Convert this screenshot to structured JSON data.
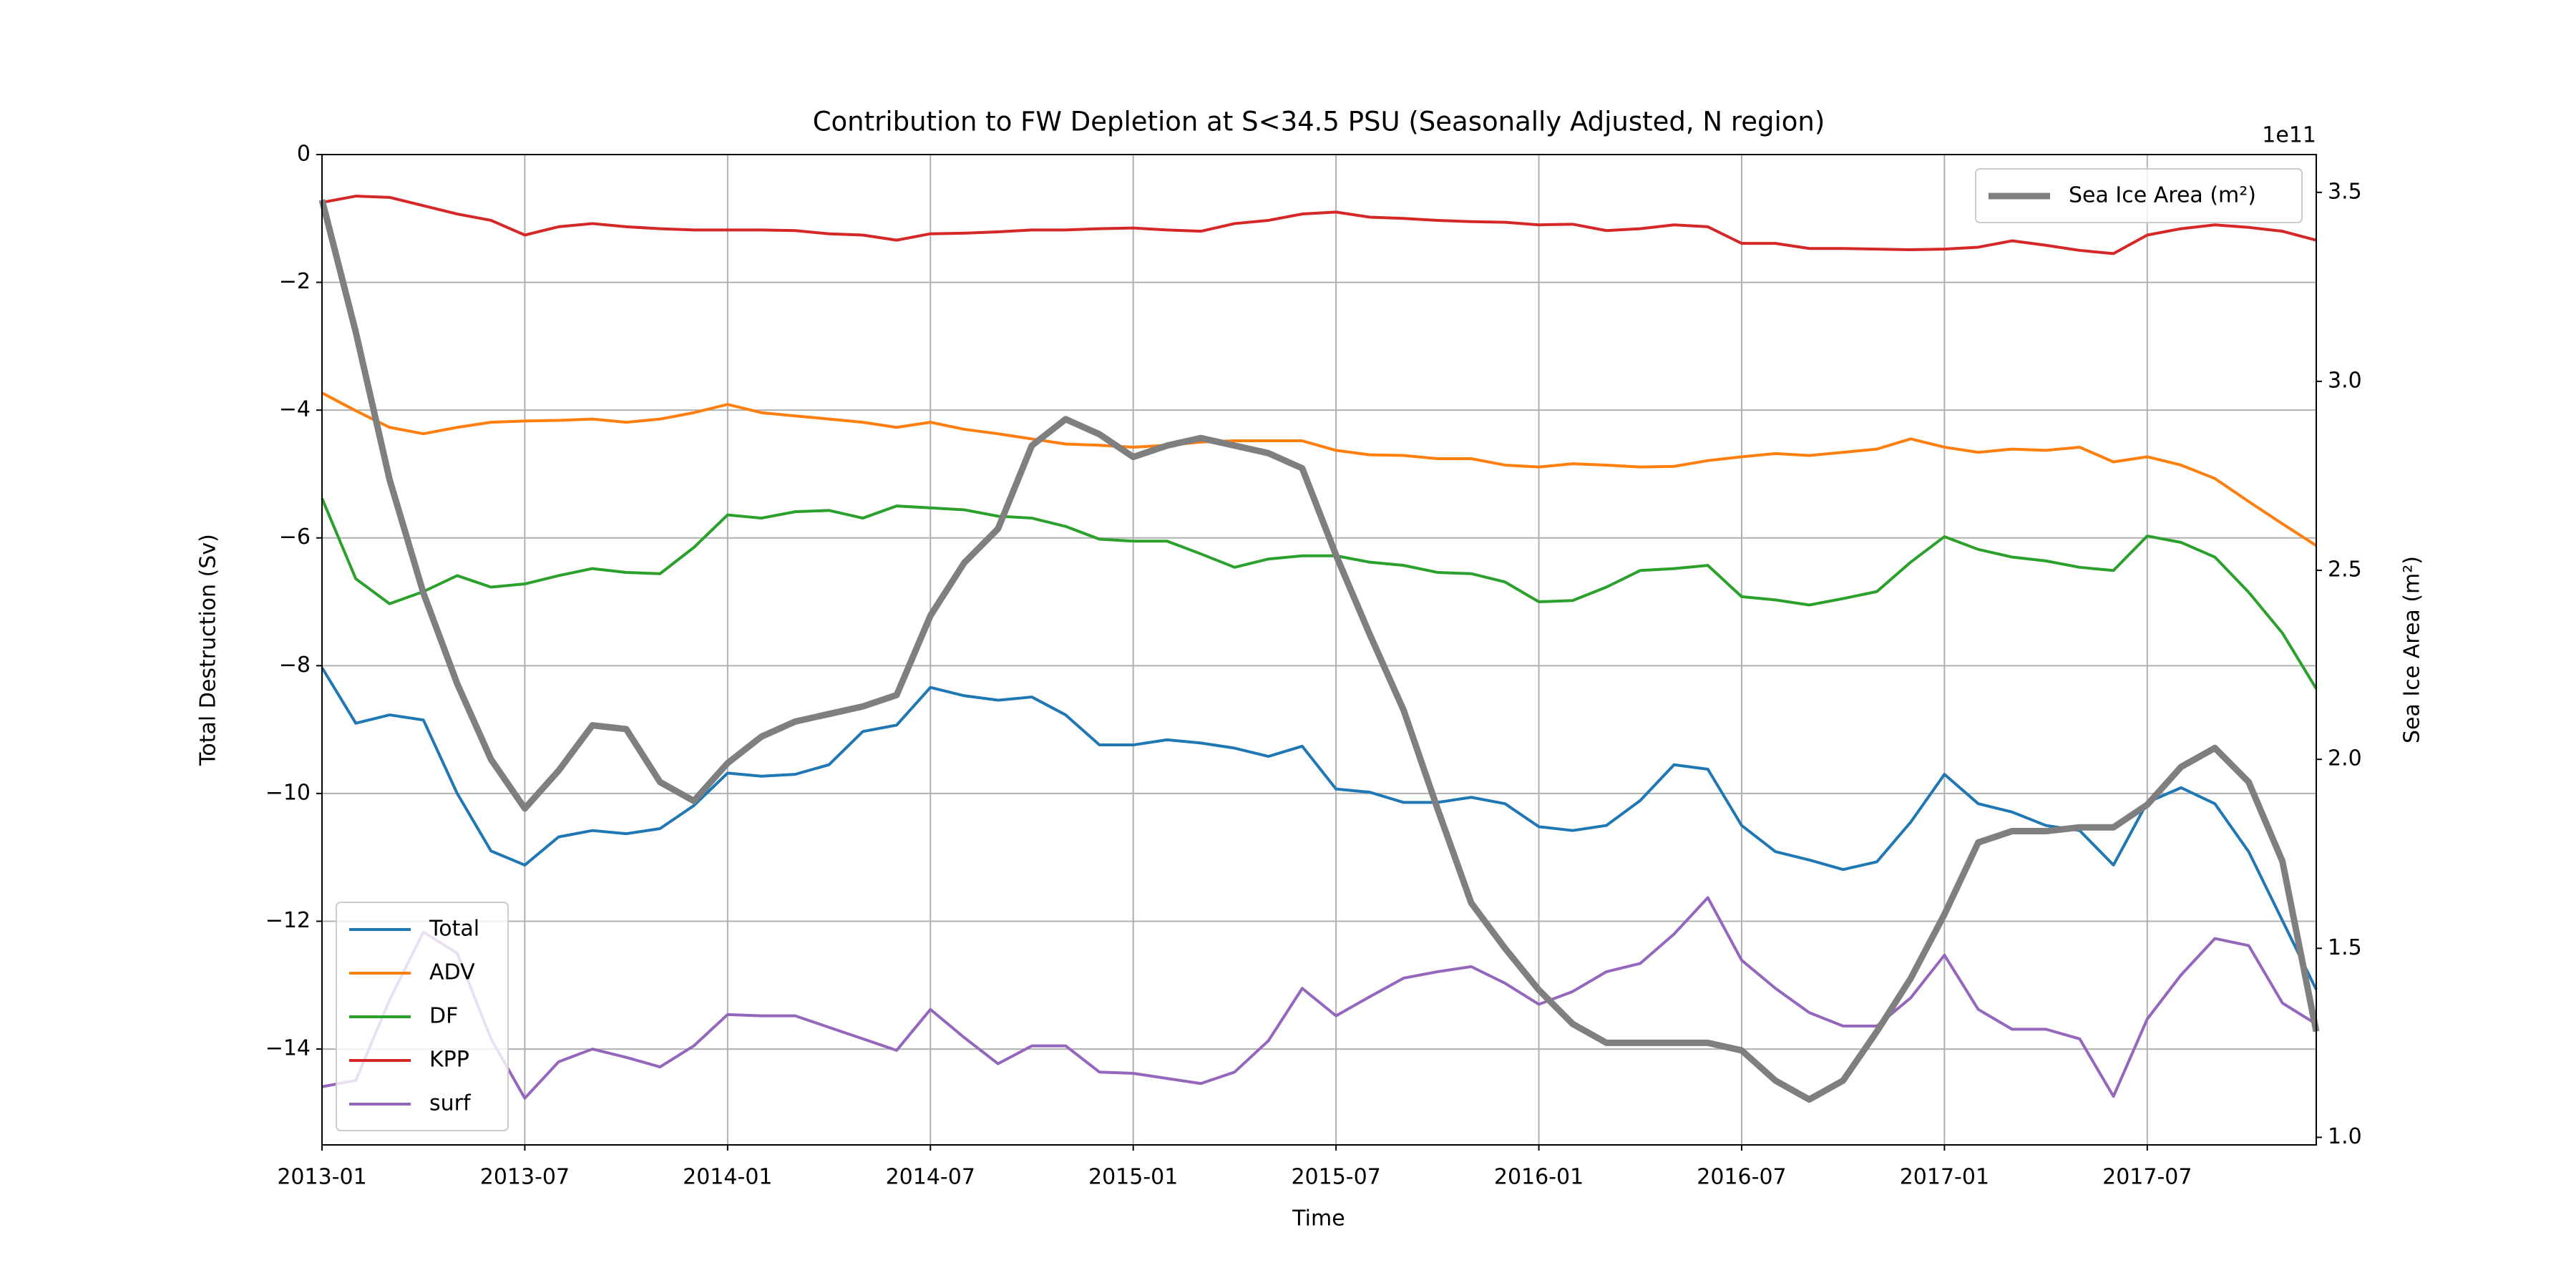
{
  "chart_data": {
    "type": "line",
    "title": "Contribution to FW Depletion at S<34.5 PSU (Seasonally Adjusted, N region)",
    "xlabel": "Time",
    "ylabel": "Total Destruction (Sv)",
    "y2label": "Sea Ice Area (m²)",
    "y2_offset_label": "1e11",
    "x": [
      "2013-01",
      "2013-02",
      "2013-03",
      "2013-04",
      "2013-05",
      "2013-06",
      "2013-07",
      "2013-08",
      "2013-09",
      "2013-10",
      "2013-11",
      "2013-12",
      "2014-01",
      "2014-02",
      "2014-03",
      "2014-04",
      "2014-05",
      "2014-06",
      "2014-07",
      "2014-08",
      "2014-09",
      "2014-10",
      "2014-11",
      "2014-12",
      "2015-01",
      "2015-02",
      "2015-03",
      "2015-04",
      "2015-05",
      "2015-06",
      "2015-07",
      "2015-08",
      "2015-09",
      "2015-10",
      "2015-11",
      "2015-12",
      "2016-01",
      "2016-02",
      "2016-03",
      "2016-04",
      "2016-05",
      "2016-06",
      "2016-07",
      "2016-08",
      "2016-09",
      "2016-10",
      "2016-11",
      "2016-12",
      "2017-01",
      "2017-02",
      "2017-03",
      "2017-04",
      "2017-05",
      "2017-06",
      "2017-07",
      "2017-08",
      "2017-09",
      "2017-10",
      "2017-11",
      "2017-12"
    ],
    "xlim": [
      "2013-01",
      "2017-12"
    ],
    "xticks": [
      "2013-01",
      "2013-07",
      "2014-01",
      "2014-07",
      "2015-01",
      "2015-07",
      "2016-01",
      "2016-07",
      "2017-01",
      "2017-07"
    ],
    "ylim": [
      -15.5,
      0
    ],
    "yticks": [
      0,
      {
        "value": -2,
        "label": "−2"
      },
      {
        "value": -4,
        "label": "−4"
      },
      {
        "value": -6,
        "label": "−6"
      },
      {
        "value": -8,
        "label": "−8"
      },
      {
        "value": -10,
        "label": "−10"
      },
      {
        "value": -12,
        "label": "−12"
      },
      {
        "value": -14,
        "label": "−14"
      }
    ],
    "y2lim": [
      0.98,
      3.6
    ],
    "y2ticks": [
      {
        "value": 1.0,
        "label": "1.0"
      },
      {
        "value": 1.5,
        "label": "1.5"
      },
      {
        "value": 2.0,
        "label": "2.0"
      },
      {
        "value": 2.5,
        "label": "2.5"
      },
      {
        "value": 3.0,
        "label": "3.0"
      },
      {
        "value": 3.5,
        "label": "3.5"
      }
    ],
    "grid": true,
    "legend": "lower left",
    "y2_legend": "upper right",
    "series": [
      {
        "name": "Total",
        "color": "#1f77b4",
        "values": [
          -8.03,
          -8.9,
          -8.77,
          -8.85,
          -10.0,
          -10.9,
          -11.12,
          -10.68,
          -10.58,
          -10.63,
          -10.55,
          -10.19,
          -9.68,
          -9.73,
          -9.7,
          -9.55,
          -9.03,
          -8.93,
          -8.34,
          -8.47,
          -8.54,
          -8.49,
          -8.77,
          -9.24,
          -9.24,
          -9.16,
          -9.21,
          -9.29,
          -9.42,
          -9.26,
          -9.93,
          -9.98,
          -10.14,
          -10.14,
          -10.06,
          -10.16,
          -10.52,
          -10.58,
          -10.5,
          -10.11,
          -9.55,
          -9.62,
          -10.5,
          -10.91,
          -11.04,
          -11.19,
          -11.07,
          -10.45,
          -9.7,
          -10.16,
          -10.29,
          -10.5,
          -10.58,
          -11.12,
          -10.14,
          -9.91,
          -10.16,
          -10.91,
          -11.99,
          -13.07
        ]
      },
      {
        "name": "ADV",
        "color": "#ff7f0e",
        "values": [
          -3.73,
          -4.01,
          -4.27,
          -4.37,
          -4.27,
          -4.19,
          -4.17,
          -4.16,
          -4.14,
          -4.19,
          -4.14,
          -4.04,
          -3.91,
          -4.04,
          -4.09,
          -4.14,
          -4.19,
          -4.27,
          -4.19,
          -4.3,
          -4.37,
          -4.45,
          -4.53,
          -4.55,
          -4.58,
          -4.55,
          -4.5,
          -4.48,
          -4.48,
          -4.48,
          -4.63,
          -4.7,
          -4.71,
          -4.76,
          -4.76,
          -4.86,
          -4.89,
          -4.84,
          -4.86,
          -4.89,
          -4.88,
          -4.79,
          -4.73,
          -4.68,
          -4.71,
          -4.66,
          -4.61,
          -4.45,
          -4.58,
          -4.66,
          -4.61,
          -4.63,
          -4.58,
          -4.81,
          -4.73,
          -4.86,
          -5.07,
          -5.43,
          -5.78,
          -6.12
        ]
      },
      {
        "name": "DF",
        "color": "#2ca02c",
        "values": [
          -5.38,
          -6.64,
          -7.03,
          -6.84,
          -6.59,
          -6.77,
          -6.72,
          -6.59,
          -6.48,
          -6.54,
          -6.56,
          -6.15,
          -5.64,
          -5.69,
          -5.59,
          -5.57,
          -5.69,
          -5.5,
          -5.53,
          -5.56,
          -5.66,
          -5.69,
          -5.82,
          -6.02,
          -6.05,
          -6.05,
          -6.25,
          -6.46,
          -6.33,
          -6.28,
          -6.28,
          -6.38,
          -6.43,
          -6.54,
          -6.56,
          -6.69,
          -7.0,
          -6.98,
          -6.77,
          -6.51,
          -6.48,
          -6.43,
          -6.92,
          -6.97,
          -7.05,
          -6.95,
          -6.84,
          -6.38,
          -5.98,
          -6.18,
          -6.3,
          -6.36,
          -6.46,
          -6.51,
          -5.97,
          -6.07,
          -6.3,
          -6.85,
          -7.49,
          -8.36
        ]
      },
      {
        "name": "KPP",
        "color": "#d62728",
        "values": [
          -0.75,
          -0.65,
          -0.67,
          -0.8,
          -0.93,
          -1.03,
          -1.26,
          -1.13,
          -1.08,
          -1.13,
          -1.16,
          -1.18,
          -1.18,
          -1.18,
          -1.19,
          -1.24,
          -1.26,
          -1.34,
          -1.24,
          -1.23,
          -1.21,
          -1.18,
          -1.18,
          -1.16,
          -1.15,
          -1.18,
          -1.2,
          -1.08,
          -1.03,
          -0.93,
          -0.9,
          -0.98,
          -1.0,
          -1.03,
          -1.05,
          -1.06,
          -1.1,
          -1.09,
          -1.19,
          -1.16,
          -1.1,
          -1.13,
          -1.39,
          -1.39,
          -1.47,
          -1.47,
          -1.48,
          -1.49,
          -1.48,
          -1.45,
          -1.35,
          -1.42,
          -1.5,
          -1.55,
          -1.26,
          -1.16,
          -1.1,
          -1.14,
          -1.2,
          -1.34
        ]
      },
      {
        "name": "surf",
        "color": "#9467bd",
        "values": [
          -14.59,
          -14.49,
          -13.23,
          -12.17,
          -12.5,
          -13.84,
          -14.77,
          -14.2,
          -14.0,
          -14.13,
          -14.28,
          -13.95,
          -13.46,
          -13.48,
          -13.48,
          -13.66,
          -13.84,
          -14.02,
          -13.38,
          -13.82,
          -14.23,
          -13.95,
          -13.95,
          -14.36,
          -14.38,
          -14.46,
          -14.54,
          -14.36,
          -13.87,
          -13.05,
          -13.48,
          -13.18,
          -12.89,
          -12.79,
          -12.71,
          -12.97,
          -13.3,
          -13.1,
          -12.79,
          -12.66,
          -12.2,
          -11.63,
          -12.61,
          -13.05,
          -13.43,
          -13.64,
          -13.64,
          -13.2,
          -12.53,
          -13.38,
          -13.69,
          -13.69,
          -13.84,
          -14.74,
          -13.53,
          -12.84,
          -12.27,
          -12.38,
          -13.28,
          -13.61
        ]
      },
      {
        "name": "Sea Ice Area (m²)",
        "color": "#7f7f7f",
        "axis": "y2",
        "values": [
          3.48,
          3.13,
          2.74,
          2.44,
          2.2,
          2.0,
          1.87,
          1.97,
          2.09,
          2.08,
          1.94,
          1.89,
          1.99,
          2.06,
          2.1,
          2.12,
          2.14,
          2.17,
          2.38,
          2.52,
          2.61,
          2.83,
          2.9,
          2.86,
          2.8,
          2.83,
          2.85,
          2.83,
          2.81,
          2.77,
          2.54,
          2.33,
          2.13,
          1.87,
          1.62,
          1.5,
          1.39,
          1.3,
          1.25,
          1.25,
          1.25,
          1.25,
          1.23,
          1.15,
          1.1,
          1.15,
          1.28,
          1.42,
          1.59,
          1.78,
          1.81,
          1.81,
          1.82,
          1.82,
          1.88,
          1.98,
          2.03,
          1.94,
          1.73,
          1.28
        ]
      }
    ]
  }
}
